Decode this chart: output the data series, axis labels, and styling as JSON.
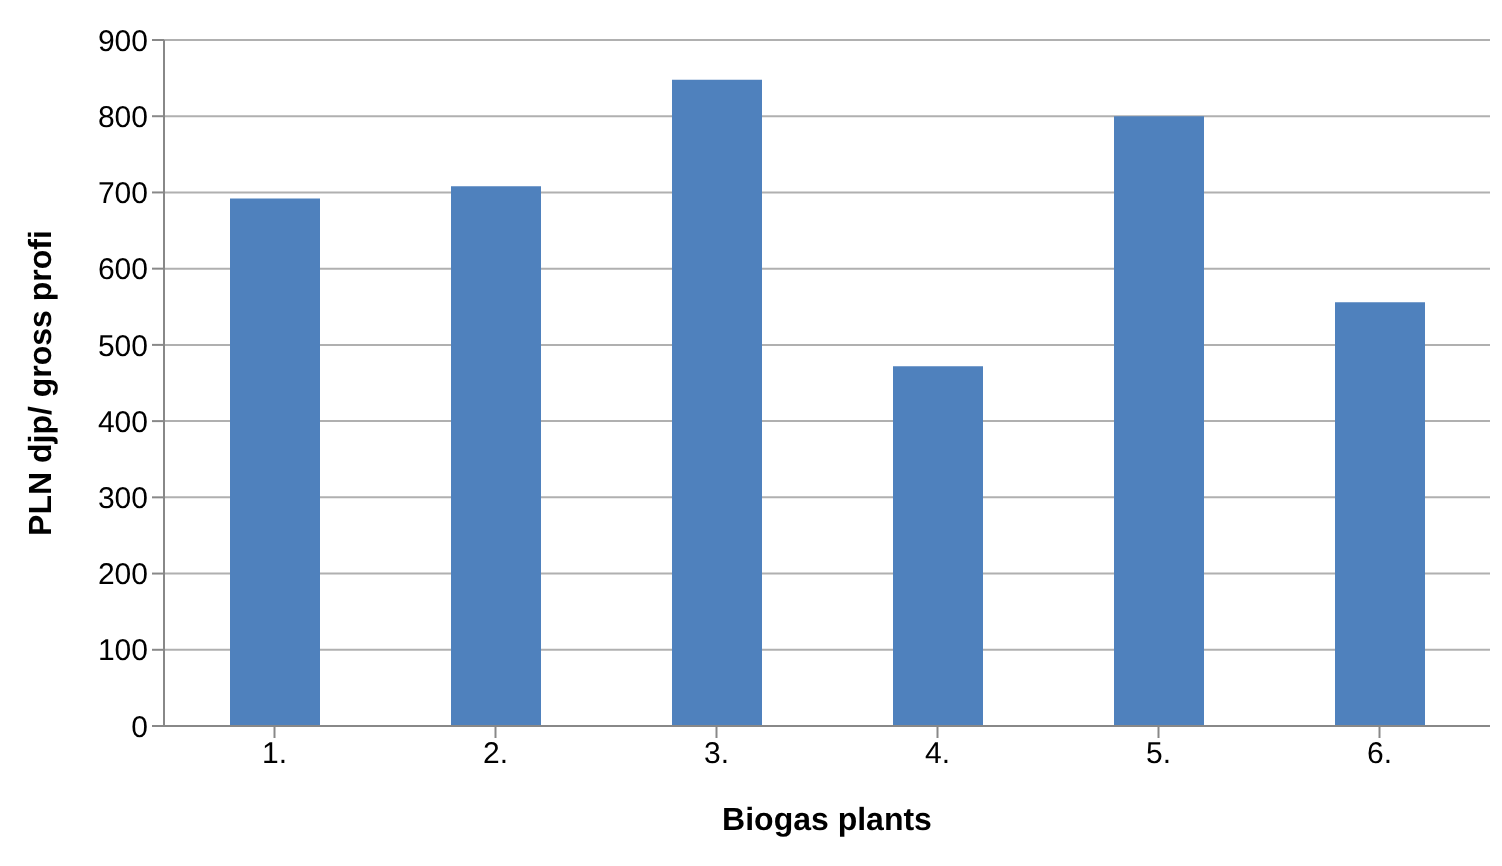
{
  "chart_data": {
    "type": "bar",
    "xlabel": "Biogas plants",
    "ylabel": "PLN djp/ gross profi",
    "categories": [
      "1.",
      "2.",
      "3.",
      "4.",
      "5.",
      "6."
    ],
    "values": [
      692,
      708,
      848,
      472,
      800,
      556
    ],
    "color": "#4f81bd",
    "ylim": [
      0,
      900
    ],
    "yticks": [
      0,
      100,
      200,
      300,
      400,
      500,
      600,
      700,
      800,
      900
    ],
    "grid": "y"
  }
}
